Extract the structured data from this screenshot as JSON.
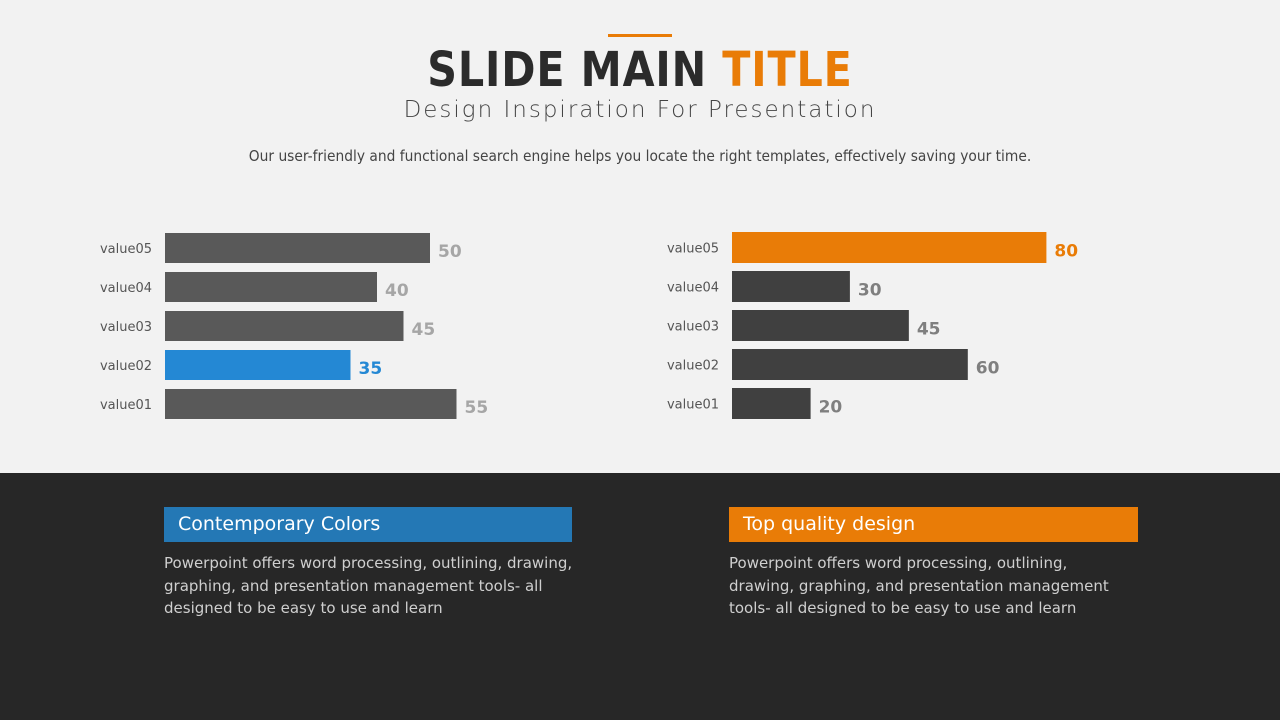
{
  "header": {
    "title_main": "SLIDE MAIN ",
    "title_accent": "TITLE",
    "subtitle": "Design Inspiration For Presentation",
    "description": "Our user-friendly and functional search engine helps you locate the right templates, effectively saving your time."
  },
  "colors": {
    "accent_orange": "#e97c07",
    "accent_blue": "#2488d4",
    "bar_gray": "#595959",
    "bar_dark": "#404040",
    "value_gray": "#a6a6a6",
    "value_dark": "#7f7f7f"
  },
  "chart_data": [
    {
      "type": "bar",
      "orientation": "horizontal",
      "categories": [
        "value05",
        "value04",
        "value03",
        "value02",
        "value01"
      ],
      "values": [
        50,
        40,
        45,
        35,
        55
      ],
      "highlight_index": 3,
      "highlight_color": "#2488d4",
      "bar_color": "#595959",
      "label_color": "#a6a6a6",
      "xlim": [
        0,
        100
      ]
    },
    {
      "type": "bar",
      "orientation": "horizontal",
      "categories": [
        "value05",
        "value04",
        "value03",
        "value02",
        "value01"
      ],
      "values": [
        80,
        30,
        45,
        60,
        20
      ],
      "highlight_index": 0,
      "highlight_color": "#e97c07",
      "bar_color": "#404040",
      "label_color": "#7f7f7f",
      "xlim": [
        0,
        100
      ]
    }
  ],
  "cards": [
    {
      "title": "Contemporary Colors",
      "color": "#2478b5",
      "body": "Powerpoint offers word processing, outlining, drawing, graphing, and presentation management tools- all designed to be easy to use and learn"
    },
    {
      "title": "Top quality design",
      "color": "#e97c07",
      "body": "Powerpoint offers word processing, outlining, drawing, graphing, and presentation management tools- all designed to be easy to use and learn"
    }
  ]
}
